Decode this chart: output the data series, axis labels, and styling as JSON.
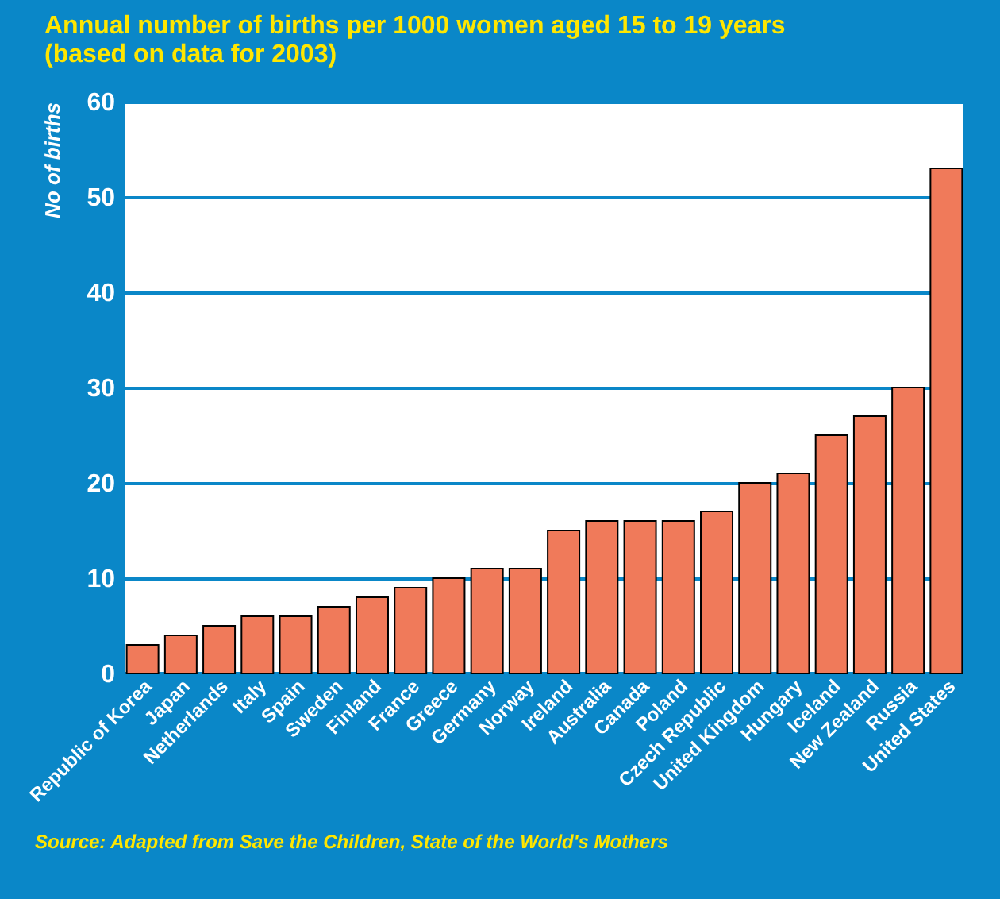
{
  "chart_data": {
    "type": "bar",
    "title": "Annual number of births per 1000 women aged 15 to 19 years",
    "subtitle": "(based on data for 2003)",
    "ylabel": "No of births",
    "categories": [
      "Republic of Korea",
      "Japan",
      "Netherlands",
      "Italy",
      "Spain",
      "Sweden",
      "Finland",
      "France",
      "Greece",
      "Germany",
      "Norway",
      "Ireland",
      "Australia",
      "Canada",
      "Poland",
      "Czech Republic",
      "United Kingdom",
      "Hungary",
      "Iceland",
      "New Zealand",
      "Russia",
      "United States"
    ],
    "values": [
      3,
      4,
      5,
      6,
      6,
      7,
      8,
      9,
      10,
      11,
      11,
      15,
      16,
      16,
      16,
      17,
      20,
      21,
      25,
      27,
      30,
      53
    ],
    "color": "#f07a5a",
    "ylim": [
      0,
      60
    ],
    "yticks": [
      0,
      10,
      20,
      30,
      40,
      50,
      60
    ],
    "grid": "y",
    "annotations": [
      "Source: Adapted from Save the Children, State of the World's Mothers"
    ]
  }
}
